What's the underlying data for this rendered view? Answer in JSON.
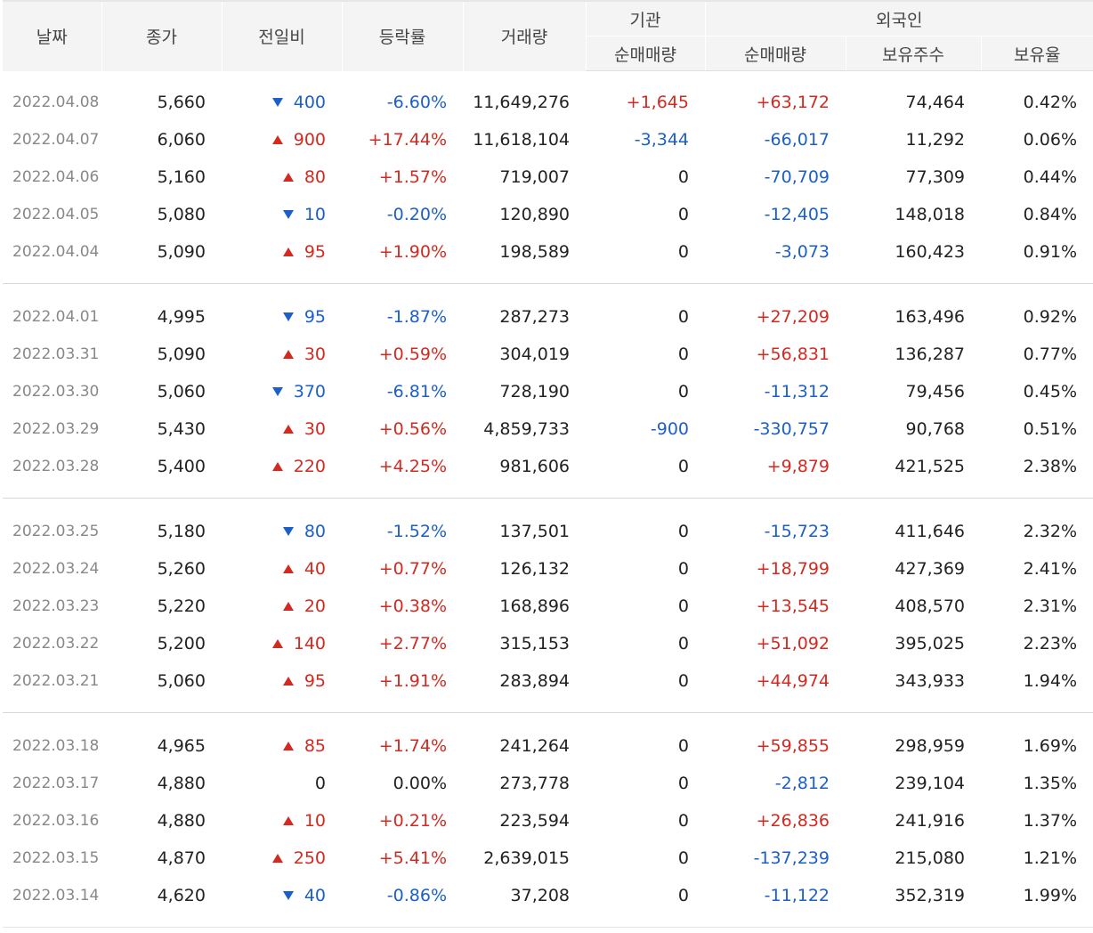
{
  "headers": {
    "date": "날짜",
    "close": "종가",
    "diff": "전일비",
    "rate": "등락률",
    "volume": "거래량",
    "institution_group": "기관",
    "institution_net": "순매매량",
    "foreign_group": "외국인",
    "foreign_net": "순매매량",
    "foreign_holdings": "보유주수",
    "foreign_ratio": "보유율"
  },
  "colors": {
    "up": "#d22a20",
    "down": "#1c5fc8",
    "neutral": "#222222",
    "date": "#888888"
  },
  "groups": [
    {
      "rows": [
        {
          "date": "2022.04.08",
          "close": "5,660",
          "dir": "down",
          "diff": "400",
          "rate": "-6.60%",
          "volume": "11,649,276",
          "inst": "+1,645",
          "fnet": "+63,172",
          "fhold": "74,464",
          "fratio": "0.42%"
        },
        {
          "date": "2022.04.07",
          "close": "6,060",
          "dir": "up",
          "diff": "900",
          "rate": "+17.44%",
          "volume": "11,618,104",
          "inst": "-3,344",
          "fnet": "-66,017",
          "fhold": "11,292",
          "fratio": "0.06%"
        },
        {
          "date": "2022.04.06",
          "close": "5,160",
          "dir": "up",
          "diff": "80",
          "rate": "+1.57%",
          "volume": "719,007",
          "inst": "0",
          "fnet": "-70,709",
          "fhold": "77,309",
          "fratio": "0.44%"
        },
        {
          "date": "2022.04.05",
          "close": "5,080",
          "dir": "down",
          "diff": "10",
          "rate": "-0.20%",
          "volume": "120,890",
          "inst": "0",
          "fnet": "-12,405",
          "fhold": "148,018",
          "fratio": "0.84%"
        },
        {
          "date": "2022.04.04",
          "close": "5,090",
          "dir": "up",
          "diff": "95",
          "rate": "+1.90%",
          "volume": "198,589",
          "inst": "0",
          "fnet": "-3,073",
          "fhold": "160,423",
          "fratio": "0.91%"
        }
      ]
    },
    {
      "rows": [
        {
          "date": "2022.04.01",
          "close": "4,995",
          "dir": "down",
          "diff": "95",
          "rate": "-1.87%",
          "volume": "287,273",
          "inst": "0",
          "fnet": "+27,209",
          "fhold": "163,496",
          "fratio": "0.92%"
        },
        {
          "date": "2022.03.31",
          "close": "5,090",
          "dir": "up",
          "diff": "30",
          "rate": "+0.59%",
          "volume": "304,019",
          "inst": "0",
          "fnet": "+56,831",
          "fhold": "136,287",
          "fratio": "0.77%"
        },
        {
          "date": "2022.03.30",
          "close": "5,060",
          "dir": "down",
          "diff": "370",
          "rate": "-6.81%",
          "volume": "728,190",
          "inst": "0",
          "fnet": "-11,312",
          "fhold": "79,456",
          "fratio": "0.45%"
        },
        {
          "date": "2022.03.29",
          "close": "5,430",
          "dir": "up",
          "diff": "30",
          "rate": "+0.56%",
          "volume": "4,859,733",
          "inst": "-900",
          "fnet": "-330,757",
          "fhold": "90,768",
          "fratio": "0.51%"
        },
        {
          "date": "2022.03.28",
          "close": "5,400",
          "dir": "up",
          "diff": "220",
          "rate": "+4.25%",
          "volume": "981,606",
          "inst": "0",
          "fnet": "+9,879",
          "fhold": "421,525",
          "fratio": "2.38%"
        }
      ]
    },
    {
      "rows": [
        {
          "date": "2022.03.25",
          "close": "5,180",
          "dir": "down",
          "diff": "80",
          "rate": "-1.52%",
          "volume": "137,501",
          "inst": "0",
          "fnet": "-15,723",
          "fhold": "411,646",
          "fratio": "2.32%"
        },
        {
          "date": "2022.03.24",
          "close": "5,260",
          "dir": "up",
          "diff": "40",
          "rate": "+0.77%",
          "volume": "126,132",
          "inst": "0",
          "fnet": "+18,799",
          "fhold": "427,369",
          "fratio": "2.41%"
        },
        {
          "date": "2022.03.23",
          "close": "5,220",
          "dir": "up",
          "diff": "20",
          "rate": "+0.38%",
          "volume": "168,896",
          "inst": "0",
          "fnet": "+13,545",
          "fhold": "408,570",
          "fratio": "2.31%"
        },
        {
          "date": "2022.03.22",
          "close": "5,200",
          "dir": "up",
          "diff": "140",
          "rate": "+2.77%",
          "volume": "315,153",
          "inst": "0",
          "fnet": "+51,092",
          "fhold": "395,025",
          "fratio": "2.23%"
        },
        {
          "date": "2022.03.21",
          "close": "5,060",
          "dir": "up",
          "diff": "95",
          "rate": "+1.91%",
          "volume": "283,894",
          "inst": "0",
          "fnet": "+44,974",
          "fhold": "343,933",
          "fratio": "1.94%"
        }
      ]
    },
    {
      "rows": [
        {
          "date": "2022.03.18",
          "close": "4,965",
          "dir": "up",
          "diff": "85",
          "rate": "+1.74%",
          "volume": "241,264",
          "inst": "0",
          "fnet": "+59,855",
          "fhold": "298,959",
          "fratio": "1.69%"
        },
        {
          "date": "2022.03.17",
          "close": "4,880",
          "dir": "flat",
          "diff": "0",
          "rate": "0.00%",
          "volume": "273,778",
          "inst": "0",
          "fnet": "-2,812",
          "fhold": "239,104",
          "fratio": "1.35%"
        },
        {
          "date": "2022.03.16",
          "close": "4,880",
          "dir": "up",
          "diff": "10",
          "rate": "+0.21%",
          "volume": "223,594",
          "inst": "0",
          "fnet": "+26,836",
          "fhold": "241,916",
          "fratio": "1.37%"
        },
        {
          "date": "2022.03.15",
          "close": "4,870",
          "dir": "up",
          "diff": "250",
          "rate": "+5.41%",
          "volume": "2,639,015",
          "inst": "0",
          "fnet": "-137,239",
          "fhold": "215,080",
          "fratio": "1.21%"
        },
        {
          "date": "2022.03.14",
          "close": "4,620",
          "dir": "down",
          "diff": "40",
          "rate": "-0.86%",
          "volume": "37,208",
          "inst": "0",
          "fnet": "-11,122",
          "fhold": "352,319",
          "fratio": "1.99%"
        }
      ]
    }
  ]
}
